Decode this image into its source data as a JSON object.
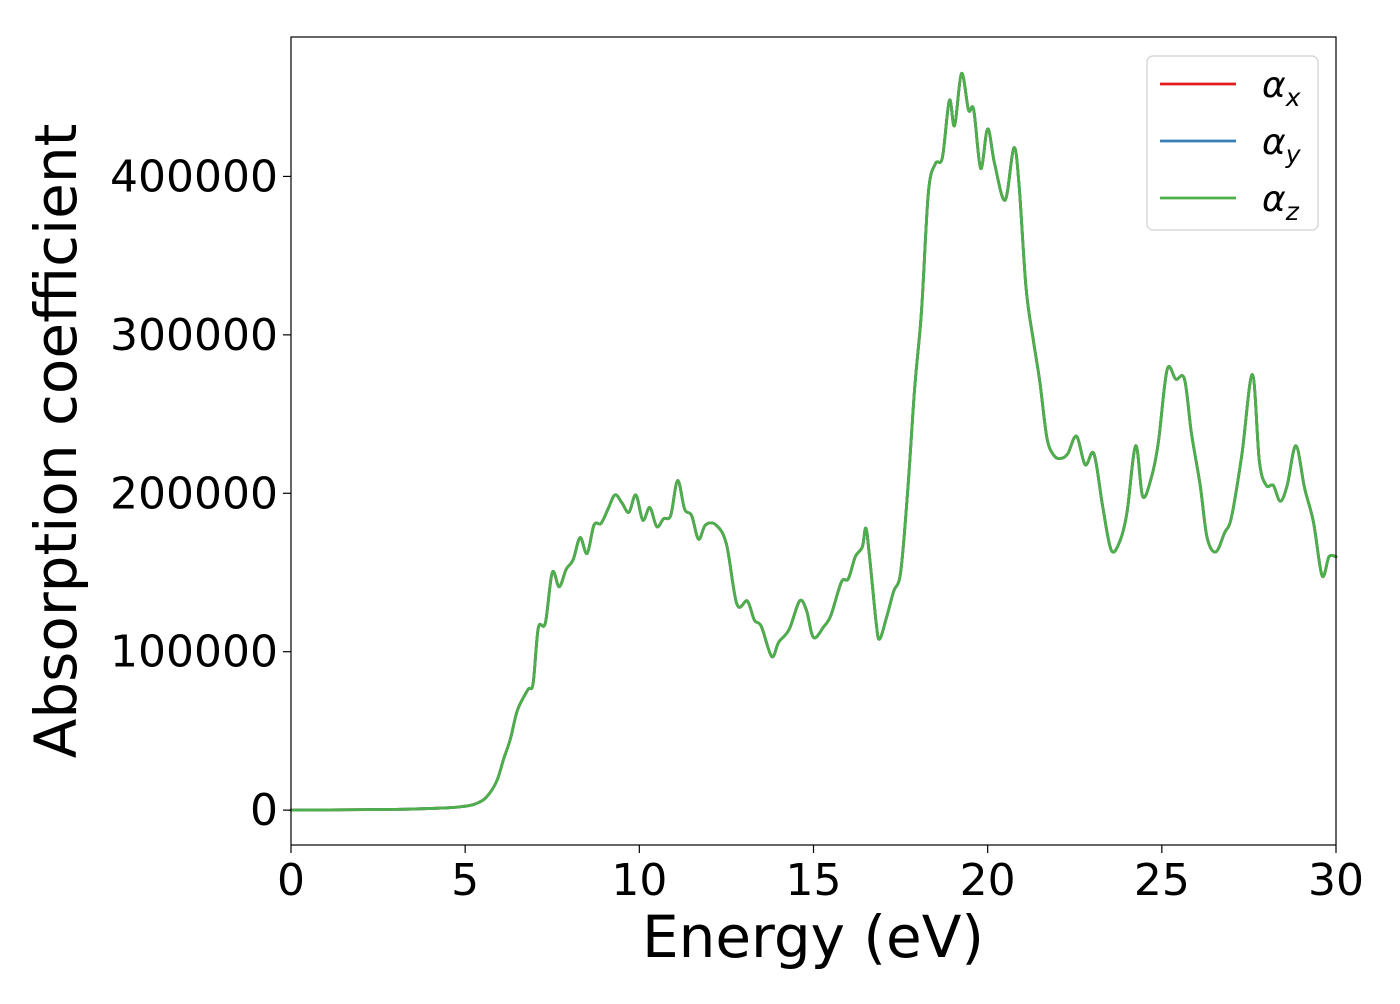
{
  "chart_data": {
    "type": "line",
    "xlabel": "Energy (eV)",
    "ylabel": "Absorption coefficient",
    "xlim": [
      0,
      30
    ],
    "ylim": [
      -22000,
      488000
    ],
    "grid": false,
    "legend_position": "top-right",
    "x_ticks": [
      0,
      5,
      10,
      15,
      20,
      25,
      30
    ],
    "y_ticks": [
      0,
      100000,
      200000,
      300000,
      400000
    ],
    "x_tick_labels": [
      "0",
      "5",
      "10",
      "15",
      "20",
      "25",
      "30"
    ],
    "y_tick_labels": [
      "0",
      "100000",
      "200000",
      "300000",
      "400000"
    ],
    "series": [
      {
        "name": "αx",
        "base": "α",
        "sub": "x",
        "color": "#e41a1c",
        "ref": "shared"
      },
      {
        "name": "αy",
        "base": "α",
        "sub": "y",
        "color": "#377eb8",
        "ref": "shared"
      },
      {
        "name": "αz",
        "base": "α",
        "sub": "z",
        "color": "#4daf4a",
        "ref": "shared"
      }
    ],
    "shared_points": [
      [
        0,
        0
      ],
      [
        3,
        500
      ],
      [
        4.5,
        1500
      ],
      [
        5.0,
        2500
      ],
      [
        5.3,
        4000
      ],
      [
        5.6,
        8000
      ],
      [
        5.9,
        18000
      ],
      [
        6.1,
        32000
      ],
      [
        6.3,
        45000
      ],
      [
        6.5,
        63000
      ],
      [
        6.8,
        76000
      ],
      [
        6.95,
        80000
      ],
      [
        7.1,
        115000
      ],
      [
        7.3,
        118000
      ],
      [
        7.5,
        150000
      ],
      [
        7.7,
        141000
      ],
      [
        7.9,
        152000
      ],
      [
        8.1,
        158000
      ],
      [
        8.3,
        172000
      ],
      [
        8.5,
        162000
      ],
      [
        8.7,
        180000
      ],
      [
        8.9,
        181000
      ],
      [
        9.1,
        190000
      ],
      [
        9.3,
        199000
      ],
      [
        9.5,
        194000
      ],
      [
        9.7,
        188000
      ],
      [
        9.9,
        199000
      ],
      [
        10.1,
        183000
      ],
      [
        10.3,
        191000
      ],
      [
        10.5,
        179000
      ],
      [
        10.7,
        184000
      ],
      [
        10.9,
        186000
      ],
      [
        11.1,
        208000
      ],
      [
        11.3,
        190000
      ],
      [
        11.5,
        186000
      ],
      [
        11.7,
        171000
      ],
      [
        11.9,
        180000
      ],
      [
        12.2,
        180000
      ],
      [
        12.5,
        168000
      ],
      [
        12.8,
        130000
      ],
      [
        13.1,
        132000
      ],
      [
        13.3,
        120000
      ],
      [
        13.5,
        116000
      ],
      [
        13.8,
        97000
      ],
      [
        14.0,
        106000
      ],
      [
        14.3,
        114000
      ],
      [
        14.6,
        132000
      ],
      [
        14.8,
        126000
      ],
      [
        15.0,
        109000
      ],
      [
        15.3,
        116000
      ],
      [
        15.5,
        123000
      ],
      [
        15.8,
        144000
      ],
      [
        16.0,
        146000
      ],
      [
        16.2,
        160000
      ],
      [
        16.4,
        166000
      ],
      [
        16.5,
        178000
      ],
      [
        16.6,
        162000
      ],
      [
        16.8,
        118000
      ],
      [
        16.9,
        108000
      ],
      [
        17.1,
        122000
      ],
      [
        17.3,
        138000
      ],
      [
        17.5,
        150000
      ],
      [
        17.7,
        200000
      ],
      [
        17.9,
        265000
      ],
      [
        18.1,
        315000
      ],
      [
        18.3,
        390000
      ],
      [
        18.5,
        408000
      ],
      [
        18.7,
        412000
      ],
      [
        18.9,
        448000
      ],
      [
        19.05,
        432000
      ],
      [
        19.25,
        465000
      ],
      [
        19.45,
        442000
      ],
      [
        19.6,
        442000
      ],
      [
        19.8,
        405000
      ],
      [
        20.0,
        430000
      ],
      [
        20.2,
        408000
      ],
      [
        20.5,
        385000
      ],
      [
        20.75,
        418000
      ],
      [
        20.9,
        395000
      ],
      [
        21.1,
        330000
      ],
      [
        21.3,
        298000
      ],
      [
        21.5,
        270000
      ],
      [
        21.7,
        235000
      ],
      [
        21.9,
        224000
      ],
      [
        22.1,
        222000
      ],
      [
        22.3,
        225000
      ],
      [
        22.55,
        236000
      ],
      [
        22.8,
        218000
      ],
      [
        23.05,
        225000
      ],
      [
        23.3,
        192000
      ],
      [
        23.55,
        164000
      ],
      [
        23.8,
        170000
      ],
      [
        24.0,
        188000
      ],
      [
        24.25,
        230000
      ],
      [
        24.45,
        198000
      ],
      [
        24.7,
        210000
      ],
      [
        24.9,
        232000
      ],
      [
        25.15,
        278000
      ],
      [
        25.4,
        272000
      ],
      [
        25.65,
        272000
      ],
      [
        25.85,
        238000
      ],
      [
        26.1,
        205000
      ],
      [
        26.3,
        172000
      ],
      [
        26.55,
        163000
      ],
      [
        26.8,
        175000
      ],
      [
        27.0,
        185000
      ],
      [
        27.3,
        225000
      ],
      [
        27.6,
        275000
      ],
      [
        27.8,
        220000
      ],
      [
        28.0,
        205000
      ],
      [
        28.2,
        205000
      ],
      [
        28.4,
        195000
      ],
      [
        28.6,
        205000
      ],
      [
        28.85,
        230000
      ],
      [
        29.1,
        203000
      ],
      [
        29.35,
        182000
      ],
      [
        29.6,
        148000
      ],
      [
        29.8,
        160000
      ],
      [
        30.0,
        160000
      ]
    ]
  }
}
